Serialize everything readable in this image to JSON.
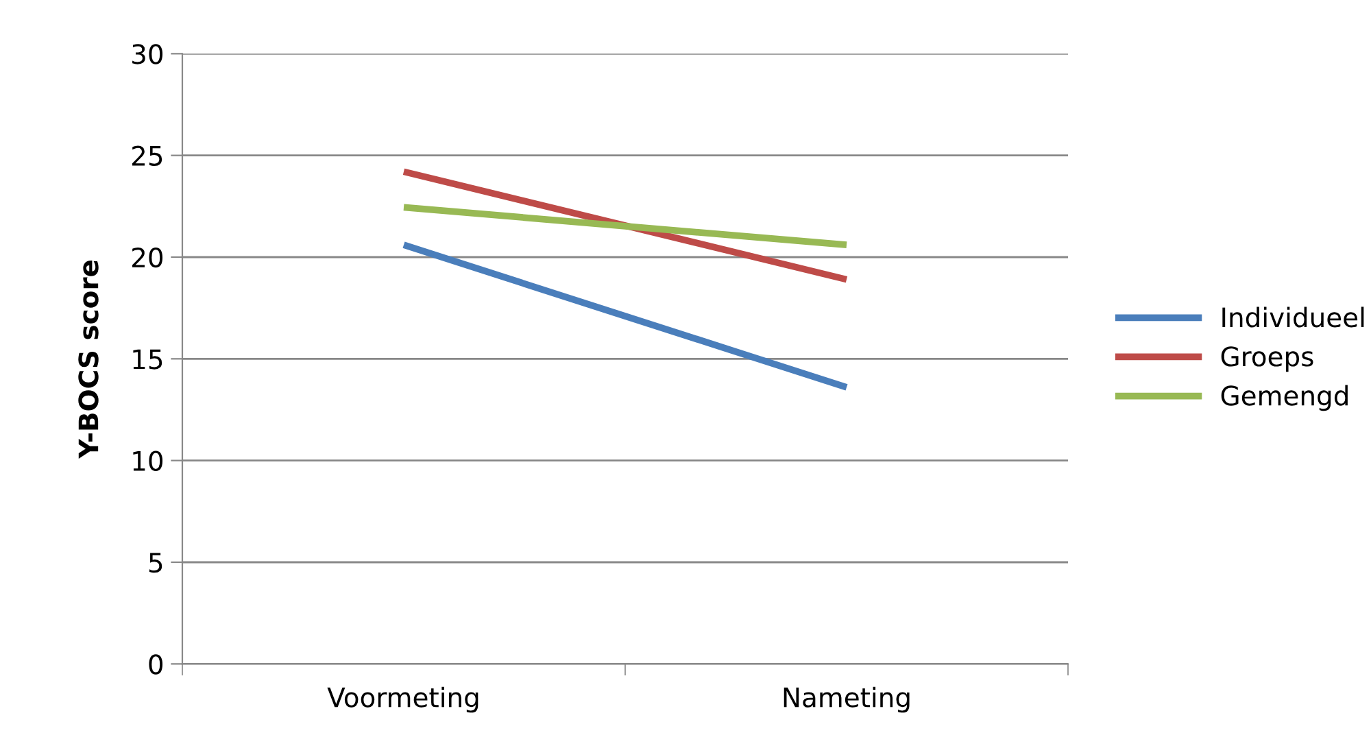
{
  "chart_data": {
    "type": "line",
    "ylabel": "Y-BOCS score",
    "categories": [
      "Voormeting",
      "Nameting"
    ],
    "series": [
      {
        "name": "Individueel",
        "color": "#4a7ebb",
        "values": [
          20.6,
          13.6
        ]
      },
      {
        "name": "Groeps",
        "color": "#be4b48",
        "values": [
          24.2,
          18.9
        ]
      },
      {
        "name": "Gemengd",
        "color": "#98b954",
        "values": [
          22.45,
          20.6
        ]
      }
    ],
    "ylim": [
      0,
      30
    ],
    "yticks": [
      0,
      5,
      10,
      15,
      20,
      25,
      30
    ],
    "grid": "y",
    "legend": "right",
    "marker": "none",
    "line_style": "solid"
  }
}
